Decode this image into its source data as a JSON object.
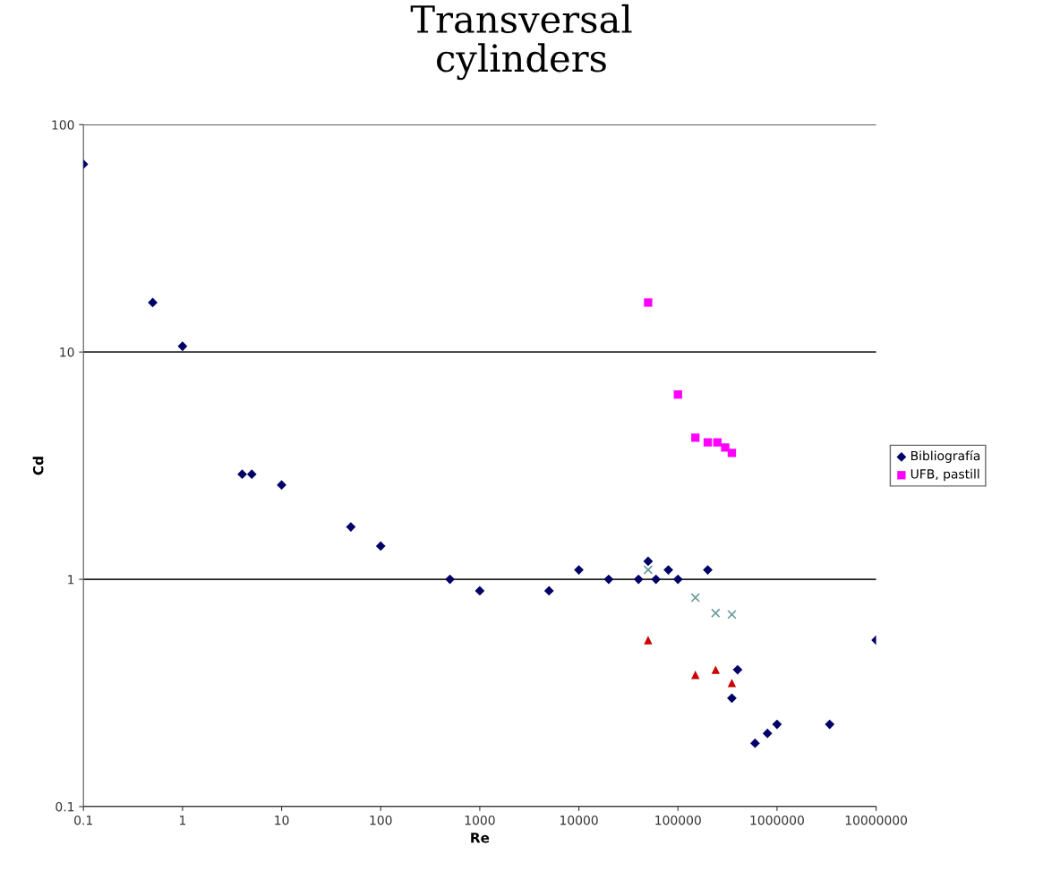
{
  "chart_data": {
    "type": "scatter",
    "title": "Transversal\ncylinders",
    "xlabel": "Re",
    "ylabel": "Cd",
    "log": "xy",
    "xlim": [
      0.1,
      10000000
    ],
    "xticks": [
      0.1,
      1,
      10,
      100,
      1000,
      10000,
      100000,
      1000000,
      10000000
    ],
    "ylim": [
      0.1,
      100
    ],
    "yticks": [
      0.1,
      1,
      10,
      100
    ],
    "grid": "y",
    "legend": "right",
    "series": [
      {
        "name": "Bibliografía",
        "color": "#000066",
        "marker": "diamond",
        "x": [
          0.1,
          0.5,
          1,
          4,
          5,
          10,
          50,
          100,
          500,
          1000,
          5000,
          10000,
          20000,
          40000,
          50000,
          60000,
          80000,
          100000,
          200000,
          400000,
          350000,
          600000,
          800000,
          1000000,
          3400000,
          10000000
        ],
        "values": [
          67,
          16.5,
          10.6,
          2.9,
          2.9,
          2.6,
          1.7,
          1.4,
          1.0,
          0.89,
          0.89,
          1.1,
          1.0,
          1.0,
          1.2,
          1.0,
          1.1,
          1.0,
          1.1,
          0.4,
          0.3,
          0.19,
          0.21,
          0.23,
          0.23,
          0.54
        ]
      },
      {
        "name": "UFB, pastill",
        "color": "#ff00ff",
        "marker": "square",
        "x": [
          50000,
          100000,
          150000,
          200000,
          230000,
          250000,
          300000,
          350000
        ],
        "values": [
          16.5,
          6.5,
          4.2,
          4.0,
          null,
          4.0,
          3.8,
          3.6
        ]
      },
      {
        "color": "#cc0000",
        "marker": "triangle",
        "x": [
          50000,
          150000,
          240000,
          350000
        ],
        "values": [
          0.54,
          0.38,
          0.4,
          0.35
        ]
      },
      {
        "color": "#669999",
        "marker": "cross",
        "x": [
          50000,
          150000,
          240000,
          350000
        ],
        "values": [
          1.1,
          0.83,
          0.71,
          0.7
        ]
      }
    ]
  }
}
